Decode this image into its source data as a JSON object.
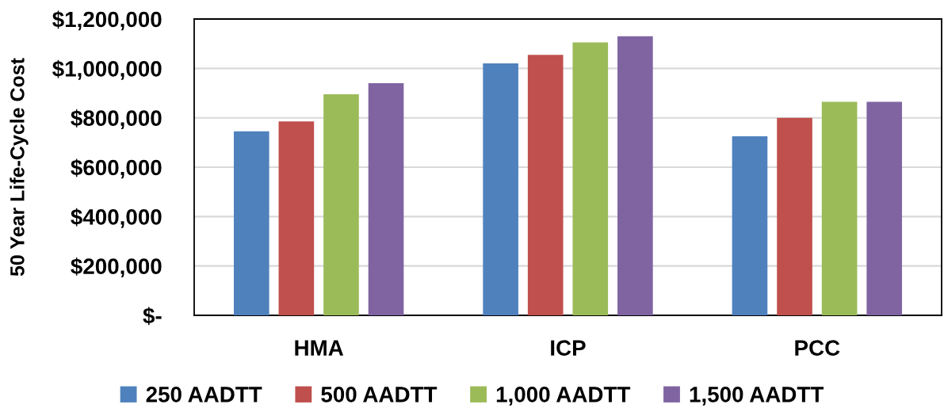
{
  "chart_data": {
    "type": "bar",
    "ylabel": "50 Year Life-Cycle Cost",
    "categories": [
      "HMA",
      "ICP",
      "PCC"
    ],
    "series": [
      {
        "name": "250 AADTT",
        "color": "#4f81bd",
        "values": [
          745000,
          1020000,
          725000
        ]
      },
      {
        "name": "500 AADTT",
        "color": "#c0504d",
        "values": [
          785000,
          1055000,
          800000
        ]
      },
      {
        "name": "1,000 AADTT",
        "color": "#9bbb59",
        "values": [
          895000,
          1105000,
          865000
        ]
      },
      {
        "name": "1,500 AADTT",
        "color": "#8064a2",
        "values": [
          940000,
          1130000,
          865000
        ]
      }
    ],
    "ylim": [
      0,
      1200000
    ],
    "yticks": [
      {
        "value": 0,
        "label": "$-"
      },
      {
        "value": 200000,
        "label": "$200,000"
      },
      {
        "value": 400000,
        "label": "$400,000"
      },
      {
        "value": 600000,
        "label": "$600,000"
      },
      {
        "value": 800000,
        "label": "$800,000"
      },
      {
        "value": 1000000,
        "label": "$1,000,000"
      },
      {
        "value": 1200000,
        "label": "$1,200,000"
      }
    ],
    "grid": "y",
    "legend": "bottom"
  }
}
